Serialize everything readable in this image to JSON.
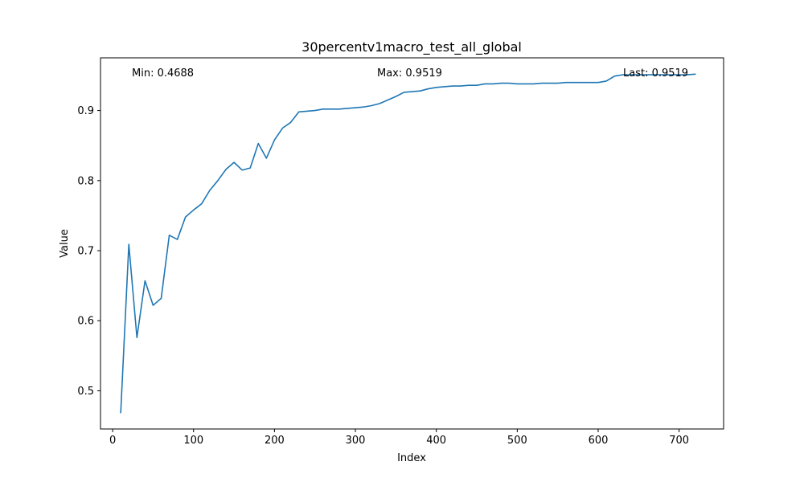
{
  "chart_data": {
    "type": "line",
    "title": "30percentv1macro_test_all_global",
    "xlabel": "Index",
    "ylabel": "Value",
    "xlim": [
      -15,
      755
    ],
    "ylim": [
      0.4455,
      0.9752
    ],
    "grid": false,
    "xticks": [
      0,
      100,
      200,
      300,
      400,
      500,
      600,
      700
    ],
    "yticks": [
      0.5,
      0.6,
      0.7,
      0.8,
      0.9
    ],
    "xtick_labels": [
      "0",
      "100",
      "200",
      "300",
      "400",
      "500",
      "600",
      "700"
    ],
    "ytick_labels": [
      "0.5",
      "0.6",
      "0.7",
      "0.8",
      "0.9"
    ],
    "annotations": {
      "min": "Min: 0.4688",
      "max": "Max: 0.9519",
      "last": "Last: 0.9519"
    },
    "series": [
      {
        "color": "#1f77b4",
        "x": [
          10,
          20,
          30,
          40,
          50,
          60,
          70,
          80,
          90,
          100,
          110,
          120,
          130,
          140,
          150,
          160,
          170,
          180,
          190,
          200,
          210,
          220,
          230,
          240,
          250,
          260,
          270,
          280,
          290,
          300,
          310,
          320,
          330,
          340,
          350,
          360,
          370,
          380,
          390,
          400,
          410,
          420,
          430,
          440,
          450,
          460,
          470,
          480,
          490,
          500,
          510,
          520,
          530,
          540,
          550,
          560,
          570,
          580,
          590,
          600,
          610,
          620,
          630,
          640,
          650,
          660,
          670,
          680,
          690,
          700,
          710,
          720
        ],
        "y": [
          0.4688,
          0.709,
          0.576,
          0.657,
          0.622,
          0.632,
          0.722,
          0.716,
          0.748,
          0.758,
          0.767,
          0.786,
          0.8,
          0.816,
          0.826,
          0.815,
          0.818,
          0.853,
          0.832,
          0.858,
          0.875,
          0.883,
          0.898,
          0.899,
          0.9,
          0.902,
          0.902,
          0.902,
          0.903,
          0.904,
          0.905,
          0.907,
          0.91,
          0.915,
          0.92,
          0.926,
          0.927,
          0.928,
          0.931,
          0.933,
          0.934,
          0.935,
          0.935,
          0.936,
          0.936,
          0.938,
          0.938,
          0.939,
          0.939,
          0.938,
          0.938,
          0.938,
          0.939,
          0.939,
          0.939,
          0.94,
          0.94,
          0.94,
          0.94,
          0.94,
          0.942,
          0.949,
          0.951,
          0.951,
          0.951,
          0.951,
          0.951,
          0.951,
          0.951,
          0.951,
          0.951,
          0.9519
        ]
      }
    ]
  }
}
